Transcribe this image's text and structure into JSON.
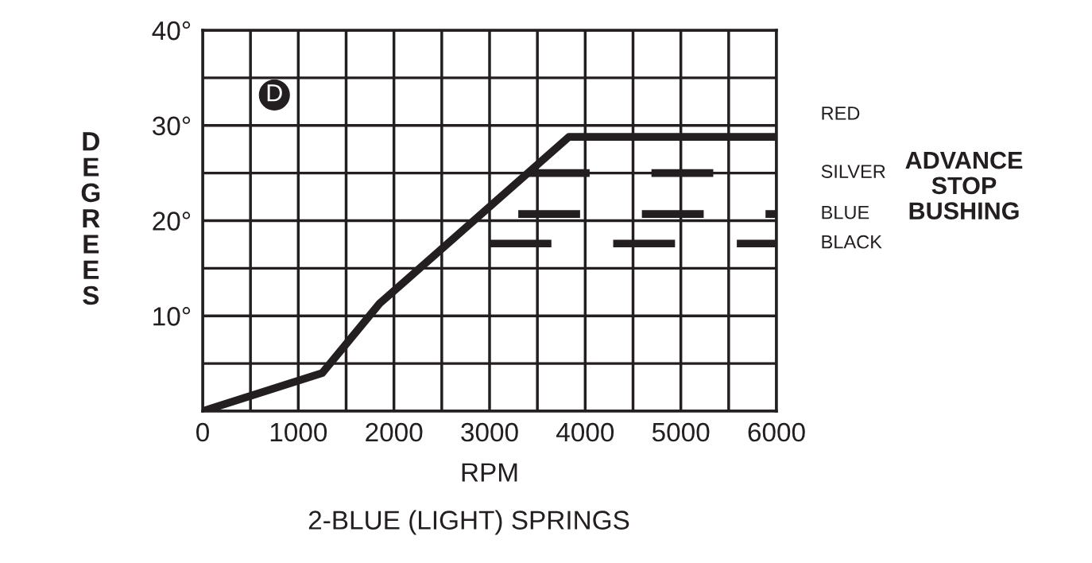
{
  "chart_data": {
    "type": "line",
    "xlabel": "RPM",
    "ylabel": "DEGREES",
    "xlim": [
      0,
      6000
    ],
    "ylim": [
      0,
      40
    ],
    "xticks": [
      0,
      {
        "value": 500,
        "label": null
      },
      1000,
      {
        "value": 1500,
        "label": null
      },
      2000,
      {
        "value": 2500,
        "label": null
      },
      3000,
      {
        "value": 3500,
        "label": null
      },
      4000,
      {
        "value": 4500,
        "label": null
      },
      5000,
      {
        "value": 5500,
        "label": null
      },
      6000
    ],
    "yticks": [
      {
        "value": 0,
        "label": null
      },
      {
        "value": 5,
        "label": null
      },
      {
        "value": 10,
        "label": "10°"
      },
      {
        "value": 15,
        "label": null
      },
      {
        "value": 20,
        "label": "20°"
      },
      {
        "value": 25,
        "label": null
      },
      {
        "value": 30,
        "label": "30°"
      },
      {
        "value": 35,
        "label": null
      },
      {
        "value": 40,
        "label": "40°"
      }
    ],
    "grid": true,
    "legend": false,
    "marker": "none",
    "series": [
      {
        "name": "RED",
        "color": "#231f20",
        "line_style": "solid",
        "x": [
          0,
          1250,
          1850,
          3830,
          6000
        ],
        "values": [
          0,
          4.0,
          11.3,
          28.8,
          28.8
        ]
      },
      {
        "name": "SILVER",
        "color": "#231f20",
        "line_style": "dashed",
        "x": [
          3400,
          6000
        ],
        "values": [
          25,
          25
        ]
      },
      {
        "name": "BLUE",
        "color": "#231f20",
        "line_style": "dashed",
        "x": [
          3300,
          6000
        ],
        "values": [
          20.7,
          20.7
        ]
      },
      {
        "name": "BLACK",
        "color": "#231f20",
        "line_style": "dashed",
        "x": [
          3000,
          6000
        ],
        "values": [
          17.6,
          17.6
        ]
      }
    ],
    "annotations": [
      "D",
      "ADVANCE\nSTOP\nBUSHING",
      "2-BLUE (LIGHT) SPRINGS"
    ]
  }
}
